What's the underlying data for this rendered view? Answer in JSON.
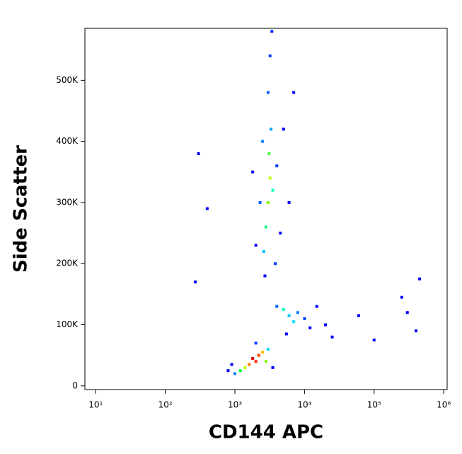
{
  "chart_data": {
    "type": "scatter",
    "x_label": "CD144 APC",
    "y_label": "Side Scatter",
    "log_x": true,
    "xlim": [
      7,
      1120000
    ],
    "ylim": [
      -6000,
      585000
    ],
    "xticks": [
      {
        "value": 10,
        "label": "10¹"
      },
      {
        "value": 100,
        "label": "10²"
      },
      {
        "value": 1000,
        "label": "10³"
      },
      {
        "value": 10000,
        "label": "10⁴"
      },
      {
        "value": 100000,
        "label": "10⁵"
      },
      {
        "value": 1000000,
        "label": "10⁶"
      }
    ],
    "yticks": [
      0,
      {
        "value": 100000,
        "label": "100K"
      },
      {
        "value": 200000,
        "label": "200K"
      },
      {
        "value": 300000,
        "label": "300K"
      },
      {
        "value": 400000,
        "label": "400K"
      },
      {
        "value": 500000,
        "label": "500K"
      }
    ],
    "x": [
      1800,
      2000,
      2200,
      1600,
      2500,
      1400,
      2800,
      1200,
      3000,
      1000,
      900,
      3500,
      2000,
      800,
      3000,
      3200,
      2800,
      3100,
      3500,
      2600,
      3300,
      3000,
      3200,
      3400,
      2500,
      4000,
      4500,
      2300,
      2000,
      5000,
      3800,
      2700,
      6000,
      1800,
      7000,
      6000,
      5000,
      7000,
      8000,
      4000,
      10000,
      12000,
      15000,
      20000,
      5500,
      25000,
      300,
      270,
      400,
      60000,
      250000,
      400000,
      450000,
      100000,
      300000
    ],
    "values": [
      45000,
      40000,
      50000,
      35000,
      55000,
      30000,
      40000,
      25000,
      60000,
      20000,
      35000,
      30000,
      70000,
      25000,
      300000,
      340000,
      260000,
      380000,
      320000,
      220000,
      420000,
      480000,
      540000,
      580000,
      400000,
      360000,
      250000,
      300000,
      230000,
      420000,
      200000,
      180000,
      300000,
      350000,
      480000,
      115000,
      125000,
      105000,
      120000,
      130000,
      110000,
      95000,
      130000,
      100000,
      85000,
      80000,
      380000,
      170000,
      290000,
      115000,
      145000,
      90000,
      175000,
      75000,
      120000
    ],
    "colors": [
      "#e00000",
      "#ff2000",
      "#ff4000",
      "#ff8000",
      "#ffc000",
      "#c0ff00",
      "#80ff00",
      "#00ff40",
      "#00e0ff",
      "#0080ff",
      "#0000ff",
      "#0000ff",
      "#0040ff",
      "#0000ff",
      "#80ff00",
      "#c0ff00",
      "#00ff80",
      "#40ff40",
      "#00ffc0",
      "#00c0ff",
      "#00a0ff",
      "#0060ff",
      "#0040ff",
      "#0020ff",
      "#0080ff",
      "#0040ff",
      "#0000ff",
      "#0060ff",
      "#0000ff",
      "#0000ff",
      "#0040ff",
      "#0000ff",
      "#0000ff",
      "#0000ff",
      "#0000ff",
      "#00c0ff",
      "#00ffc0",
      "#00e0ff",
      "#0080ff",
      "#0060ff",
      "#0040ff",
      "#0000ff",
      "#0000ff",
      "#0000ff",
      "#0000ff",
      "#0000ff",
      "#0000ff",
      "#0000ff",
      "#0000ff",
      "#0000ff",
      "#0000ff",
      "#0000ff",
      "#0000ff",
      "#0000ff",
      "#0000ff"
    ]
  }
}
